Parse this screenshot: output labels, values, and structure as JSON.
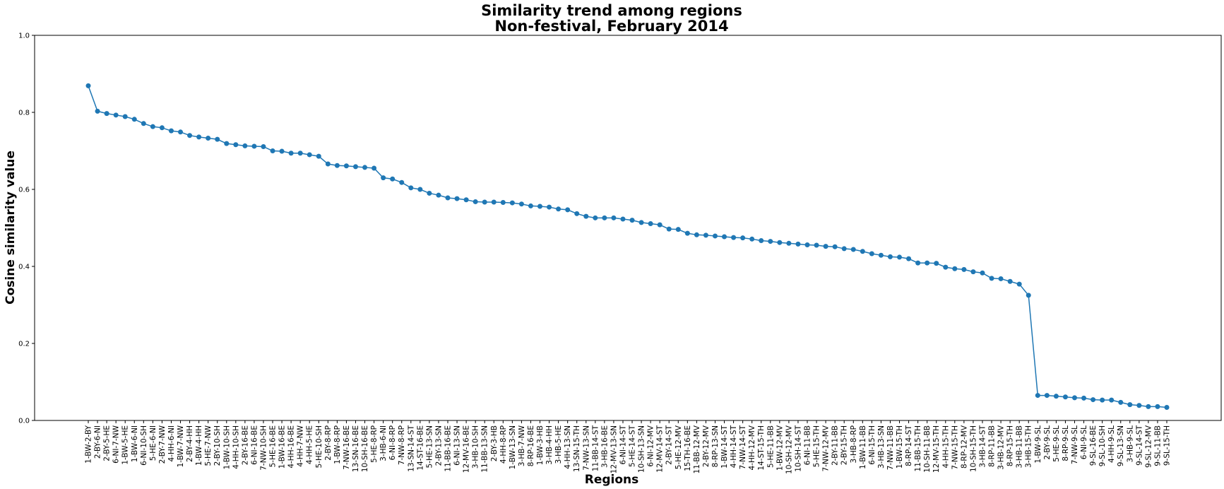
{
  "chart_data": {
    "type": "line",
    "title": "Similarity trend among regions",
    "subtitle": "Non-festival, February 2014",
    "xlabel": "Regions",
    "ylabel": "Cosine similarity value",
    "ylim": [
      0.0,
      1.0
    ],
    "yticks": [
      "0.0",
      "0.2",
      "0.4",
      "0.6",
      "0.8",
      "1.0"
    ],
    "grid": false,
    "line_color": "#1f77b4",
    "categories": [
      "1-BW-2-BY",
      "2-BY-6-NI",
      "2-BY-5-HE",
      "6-NI-7-NW",
      "1-BW-5-HE",
      "1-BW-6-NI",
      "6-NI-10-SH",
      "5-HE-6-NI",
      "2-BY-7-NW",
      "4-HH-6-NI",
      "1-BW-7-NW",
      "2-BY-4-HH",
      "1-BW-4-HH",
      "5-HE-7-NW",
      "2-BY-10-SH",
      "1-BW-10-SH",
      "4-HH-10-SH",
      "2-BY-16-BE",
      "6-NI-16-BE",
      "7-NW-10-SH",
      "5-HE-16-BE",
      "1-BW-16-BE",
      "4-HH-16-BE",
      "4-HH-7-NW",
      "4-HH-5-HE",
      "5-HE-10-SH",
      "2-BY-8-RP",
      "1-BW-8-RP",
      "7-NW-16-BE",
      "13-SN-16-BE",
      "10-SH-16-BE",
      "5-HE-8-RP",
      "3-HB-6-NI",
      "6-NI-8-RP",
      "7-NW-8-RP",
      "13-SN-14-ST",
      "14-ST-16-BE",
      "5-HE-13-SN",
      "2-BY-13-SN",
      "11-BB-16-BE",
      "6-NI-13-SN",
      "12-MV-16-BE",
      "3-HB-10-SH",
      "11-BB-13-SN",
      "2-BY-3-HB",
      "4-HH-8-RP",
      "1-BW-13-SN",
      "3-HB-7-NW",
      "8-RP-16-BE",
      "1-BW-3-HB",
      "3-HB-4-HH",
      "3-HB-5-HE",
      "4-HH-13-SN",
      "13-SN-15-TH",
      "7-NW-13-SN",
      "11-BB-14-ST",
      "3-HB-16-BE",
      "12-MV-13-SN",
      "6-NI-14-ST",
      "5-HE-14-ST",
      "10-SH-13-SN",
      "6-NI-12-MV",
      "12-MV-14-ST",
      "2-BY-14-ST",
      "5-HE-12-MV",
      "15-TH-16-BE",
      "11-BB-12-MV",
      "2-BY-12-MV",
      "8-RP-13-SN",
      "1-BW-14-ST",
      "4-HH-14-ST",
      "7-NW-14-ST",
      "4-HH-12-MV",
      "14-ST-15-TH",
      "5-HE-11-BB",
      "1-BW-12-MV",
      "10-SH-12-MV",
      "10-SH-14-ST",
      "6-NI-11-BB",
      "5-HE-15-TH",
      "7-NW-12-MV",
      "2-BY-11-BB",
      "2-BY-15-TH",
      "3-HB-8-RP",
      "1-BW-11-BB",
      "6-NI-15-TH",
      "3-HB-13-SN",
      "7-NW-11-BB",
      "1-BW-15-TH",
      "8-RP-14-ST",
      "11-BB-15-TH",
      "10-SH-11-BB",
      "12-MV-15-TH",
      "4-HH-15-TH",
      "7-NW-15-TH",
      "8-RP-12-MV",
      "10-SH-15-TH",
      "3-HB-14-ST",
      "8-RP-11-BB",
      "3-HB-12-MV",
      "8-RP-15-TH",
      "3-HB-11-BB",
      "3-HB-15-TH",
      "1-BW-9-SL",
      "2-BY-9-SL",
      "5-HE-9-SL",
      "8-RP-9-SL",
      "7-NW-9-SL",
      "6-NI-9-SL",
      "9-SL-16-BE",
      "9-SL-10-SH",
      "4-HH-9-SL",
      "9-SL-13-SN",
      "3-HB-9-SL",
      "9-SL-14-ST",
      "9-SL-12-MV",
      "9-SL-11-BB",
      "9-SL-15-TH"
    ],
    "values": [
      0.869,
      0.803,
      0.797,
      0.793,
      0.789,
      0.782,
      0.771,
      0.763,
      0.76,
      0.752,
      0.749,
      0.74,
      0.736,
      0.733,
      0.73,
      0.719,
      0.716,
      0.713,
      0.712,
      0.711,
      0.7,
      0.699,
      0.694,
      0.694,
      0.69,
      0.686,
      0.666,
      0.662,
      0.661,
      0.659,
      0.657,
      0.655,
      0.63,
      0.627,
      0.618,
      0.604,
      0.6,
      0.59,
      0.585,
      0.578,
      0.576,
      0.573,
      0.568,
      0.567,
      0.567,
      0.566,
      0.565,
      0.562,
      0.557,
      0.556,
      0.554,
      0.549,
      0.547,
      0.537,
      0.53,
      0.526,
      0.526,
      0.526,
      0.523,
      0.52,
      0.514,
      0.511,
      0.508,
      0.497,
      0.496,
      0.486,
      0.482,
      0.481,
      0.479,
      0.477,
      0.475,
      0.474,
      0.471,
      0.467,
      0.465,
      0.462,
      0.46,
      0.458,
      0.456,
      0.455,
      0.452,
      0.451,
      0.446,
      0.444,
      0.439,
      0.433,
      0.429,
      0.425,
      0.424,
      0.42,
      0.409,
      0.409,
      0.408,
      0.398,
      0.394,
      0.392,
      0.386,
      0.383,
      0.369,
      0.368,
      0.361,
      0.354,
      0.325,
      0.065,
      0.065,
      0.063,
      0.061,
      0.059,
      0.058,
      0.054,
      0.053,
      0.053,
      0.047,
      0.041,
      0.039,
      0.036,
      0.036,
      0.034
    ]
  }
}
